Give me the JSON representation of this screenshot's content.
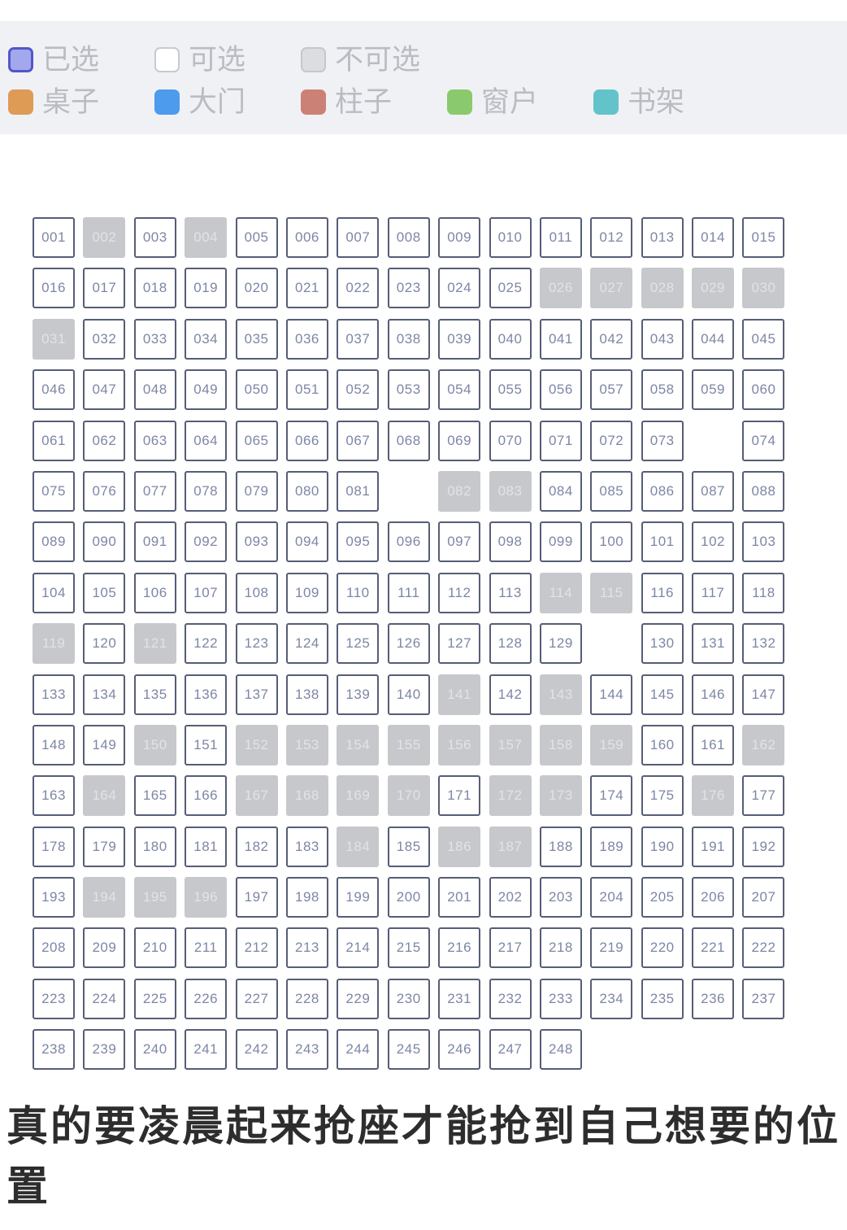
{
  "legend": {
    "row1": [
      {
        "type": "selected",
        "label": "已选",
        "fill": "#a3a8ec",
        "border": "#5157c9"
      },
      {
        "type": "available",
        "label": "可选",
        "fill": "#ffffff",
        "border": "#c9cacf"
      },
      {
        "type": "unavailable",
        "label": "不可选",
        "fill": "#dcdde0",
        "border": "#c6c7cb"
      }
    ],
    "row2": [
      {
        "type": "table",
        "label": "桌子",
        "fill": "#dd9b55",
        "border": ""
      },
      {
        "type": "door",
        "label": "大门",
        "fill": "#4d9bed",
        "border": ""
      },
      {
        "type": "pillar",
        "label": "柱子",
        "fill": "#cc8176",
        "border": ""
      },
      {
        "type": "window",
        "label": "窗户",
        "fill": "#8bc96e",
        "border": ""
      },
      {
        "type": "bookshelf",
        "label": "书架",
        "fill": "#63c3cb",
        "border": ""
      }
    ]
  },
  "colors": {
    "band_bg": "#f0f1f4",
    "legend_text": "#b9bcc3",
    "seat_border": "#565d77",
    "seat_text": "#7d86a5",
    "unavail_fill": "#c7c8cc",
    "unavail_text": "#e2e3e6",
    "caption_color": "#2d2d2d"
  },
  "grid": {
    "columns": 15,
    "rows": [
      [
        "001",
        "002",
        "003",
        "004",
        "005",
        "006",
        "007",
        "008",
        "009",
        "010",
        "011",
        "012",
        "013",
        "014",
        "015"
      ],
      [
        "016",
        "017",
        "018",
        "019",
        "020",
        "021",
        "022",
        "023",
        "024",
        "025",
        "026",
        "027",
        "028",
        "029",
        "030"
      ],
      [
        "031",
        "032",
        "033",
        "034",
        "035",
        "036",
        "037",
        "038",
        "039",
        "040",
        "041",
        "042",
        "043",
        "044",
        "045"
      ],
      [
        "046",
        "047",
        "048",
        "049",
        "050",
        "051",
        "052",
        "053",
        "054",
        "055",
        "056",
        "057",
        "058",
        "059",
        "060"
      ],
      [
        "061",
        "062",
        "063",
        "064",
        "065",
        "066",
        "067",
        "068",
        "069",
        "070",
        "071",
        "072",
        "073",
        "",
        "074"
      ],
      [
        "075",
        "076",
        "077",
        "078",
        "079",
        "080",
        "081",
        "",
        "082",
        "083",
        "084",
        "085",
        "086",
        "087",
        "088"
      ],
      [
        "089",
        "090",
        "091",
        "092",
        "093",
        "094",
        "095",
        "096",
        "097",
        "098",
        "099",
        "100",
        "101",
        "102",
        "103"
      ],
      [
        "104",
        "105",
        "106",
        "107",
        "108",
        "109",
        "110",
        "111",
        "112",
        "113",
        "114",
        "115",
        "116",
        "117",
        "118"
      ],
      [
        "119",
        "120",
        "121",
        "122",
        "123",
        "124",
        "125",
        "126",
        "127",
        "128",
        "129",
        "",
        "130",
        "131",
        "132"
      ],
      [
        "133",
        "134",
        "135",
        "136",
        "137",
        "138",
        "139",
        "140",
        "141",
        "142",
        "143",
        "144",
        "145",
        "146",
        "147"
      ],
      [
        "148",
        "149",
        "150",
        "151",
        "152",
        "153",
        "154",
        "155",
        "156",
        "157",
        "158",
        "159",
        "160",
        "161",
        "162"
      ],
      [
        "163",
        "164",
        "165",
        "166",
        "167",
        "168",
        "169",
        "170",
        "171",
        "172",
        "173",
        "174",
        "175",
        "176",
        "177"
      ],
      [
        "178",
        "179",
        "180",
        "181",
        "182",
        "183",
        "184",
        "185",
        "186",
        "187",
        "188",
        "189",
        "190",
        "191",
        "192"
      ],
      [
        "193",
        "194",
        "195",
        "196",
        "197",
        "198",
        "199",
        "200",
        "201",
        "202",
        "203",
        "204",
        "205",
        "206",
        "207"
      ],
      [
        "208",
        "209",
        "210",
        "211",
        "212",
        "213",
        "214",
        "215",
        "216",
        "217",
        "218",
        "219",
        "220",
        "221",
        "222"
      ],
      [
        "223",
        "224",
        "225",
        "226",
        "227",
        "228",
        "229",
        "230",
        "231",
        "232",
        "233",
        "234",
        "235",
        "236",
        "237"
      ],
      [
        "238",
        "239",
        "240",
        "241",
        "242",
        "243",
        "244",
        "245",
        "246",
        "247",
        "248"
      ]
    ],
    "unavailable": [
      "002",
      "004",
      "026",
      "027",
      "028",
      "029",
      "030",
      "031",
      "082",
      "083",
      "114",
      "115",
      "119",
      "121",
      "141",
      "143",
      "150",
      "152",
      "153",
      "154",
      "155",
      "156",
      "157",
      "158",
      "159",
      "162",
      "164",
      "167",
      "168",
      "169",
      "170",
      "172",
      "173",
      "176",
      "184",
      "186",
      "187",
      "194",
      "195",
      "196"
    ]
  },
  "caption": {
    "text": "真的要凌晨起来抢座才能抢到自己想要的位置"
  }
}
